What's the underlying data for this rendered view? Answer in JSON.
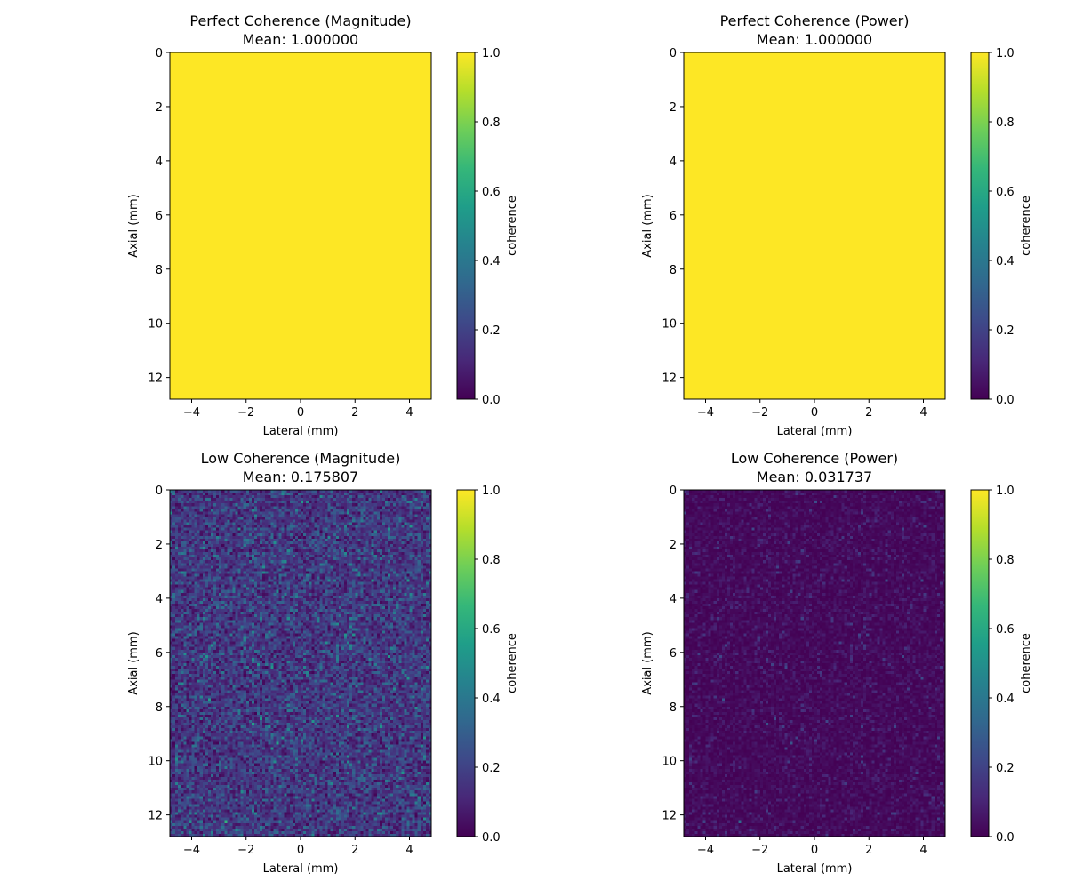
{
  "colormap": {
    "name": "viridis",
    "stops": [
      "#440154",
      "#482878",
      "#3e4989",
      "#31688e",
      "#26828e",
      "#1f9e89",
      "#35b779",
      "#6ece58",
      "#b5de2b",
      "#fde725"
    ]
  },
  "chart_data": [
    {
      "type": "heatmap",
      "title": "Perfect Coherence (Magnitude)",
      "subtitle": "Mean: 1.000000",
      "xlabel": "Lateral (mm)",
      "ylabel": "Axial (mm)",
      "xlim": [
        -4.8,
        4.8
      ],
      "ylim": [
        12.8,
        0
      ],
      "xticks": [
        -4,
        -2,
        0,
        2,
        4
      ],
      "yticks": [
        0,
        2,
        4,
        6,
        8,
        10,
        12
      ],
      "colorbar": {
        "label": "coherence",
        "range": [
          0,
          1
        ],
        "ticks": [
          "0.0",
          "0.2",
          "0.4",
          "0.6",
          "0.8",
          "1.0"
        ]
      },
      "grid": {
        "cols": 96,
        "rows": 128
      },
      "values": {
        "constant": 1.0
      }
    },
    {
      "type": "heatmap",
      "title": "Perfect Coherence (Power)",
      "subtitle": "Mean: 1.000000",
      "xlabel": "Lateral (mm)",
      "ylabel": "Axial (mm)",
      "xlim": [
        -4.8,
        4.8
      ],
      "ylim": [
        12.8,
        0
      ],
      "xticks": [
        -4,
        -2,
        0,
        2,
        4
      ],
      "yticks": [
        0,
        2,
        4,
        6,
        8,
        10,
        12
      ],
      "colorbar": {
        "label": "coherence",
        "range": [
          0,
          1
        ],
        "ticks": [
          "0.0",
          "0.2",
          "0.4",
          "0.6",
          "0.8",
          "1.0"
        ]
      },
      "grid": {
        "cols": 96,
        "rows": 128
      },
      "values": {
        "constant": 1.0
      }
    },
    {
      "type": "heatmap",
      "title": "Low Coherence (Magnitude)",
      "subtitle": "Mean: 0.175807",
      "xlabel": "Lateral (mm)",
      "ylabel": "Axial (mm)",
      "xlim": [
        -4.8,
        4.8
      ],
      "ylim": [
        12.8,
        0
      ],
      "xticks": [
        -4,
        -2,
        0,
        2,
        4
      ],
      "yticks": [
        0,
        2,
        4,
        6,
        8,
        10,
        12
      ],
      "colorbar": {
        "label": "coherence",
        "range": [
          0,
          1
        ],
        "ticks": [
          "0.0",
          "0.2",
          "0.4",
          "0.6",
          "0.8",
          "1.0"
        ]
      },
      "grid": {
        "cols": 96,
        "rows": 128
      },
      "values": {
        "random": "rayleigh",
        "mean": 0.175807,
        "seed": 7
      }
    },
    {
      "type": "heatmap",
      "title": "Low Coherence (Power)",
      "subtitle": "Mean: 0.031737",
      "xlabel": "Lateral (mm)",
      "ylabel": "Axial (mm)",
      "xlim": [
        -4.8,
        4.8
      ],
      "ylim": [
        12.8,
        0
      ],
      "xticks": [
        -4,
        -2,
        0,
        2,
        4
      ],
      "yticks": [
        0,
        2,
        4,
        6,
        8,
        10,
        12
      ],
      "colorbar": {
        "label": "coherence",
        "range": [
          0,
          1
        ],
        "ticks": [
          "0.0",
          "0.2",
          "0.4",
          "0.6",
          "0.8",
          "1.0"
        ]
      },
      "grid": {
        "cols": 96,
        "rows": 128
      },
      "values": {
        "random": "exponential",
        "mean": 0.031737,
        "seed": 7
      }
    }
  ]
}
